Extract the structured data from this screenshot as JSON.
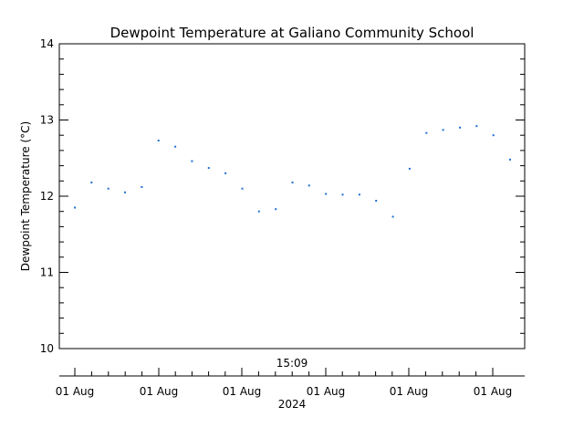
{
  "chart_data": {
    "type": "scatter",
    "title": "Dewpoint Temperature at Galiano Community School",
    "ylabel": "Dewpoint Temperature (°C)",
    "ylim": [
      10,
      14
    ],
    "y_ticks": [
      "10",
      "11",
      "12",
      "13",
      "14"
    ],
    "time_label": "15:09",
    "x_tick_labels": [
      "01 Aug",
      "01 Aug",
      "01 Aug",
      "01 Aug",
      "01 Aug",
      "01 Aug"
    ],
    "x_unit_label": "2024",
    "grid": false,
    "point_color": "#1f6fd6",
    "series": [
      {
        "values": [
          11.85,
          12.18,
          12.1,
          12.05,
          12.12,
          12.73,
          12.65,
          12.46,
          12.37,
          12.3,
          12.1,
          11.8,
          11.83,
          12.18,
          12.14,
          12.03,
          12.02,
          12.02,
          11.94,
          11.73,
          12.36,
          12.83,
          12.87,
          12.9,
          12.92,
          12.8,
          12.48
        ]
      }
    ]
  }
}
